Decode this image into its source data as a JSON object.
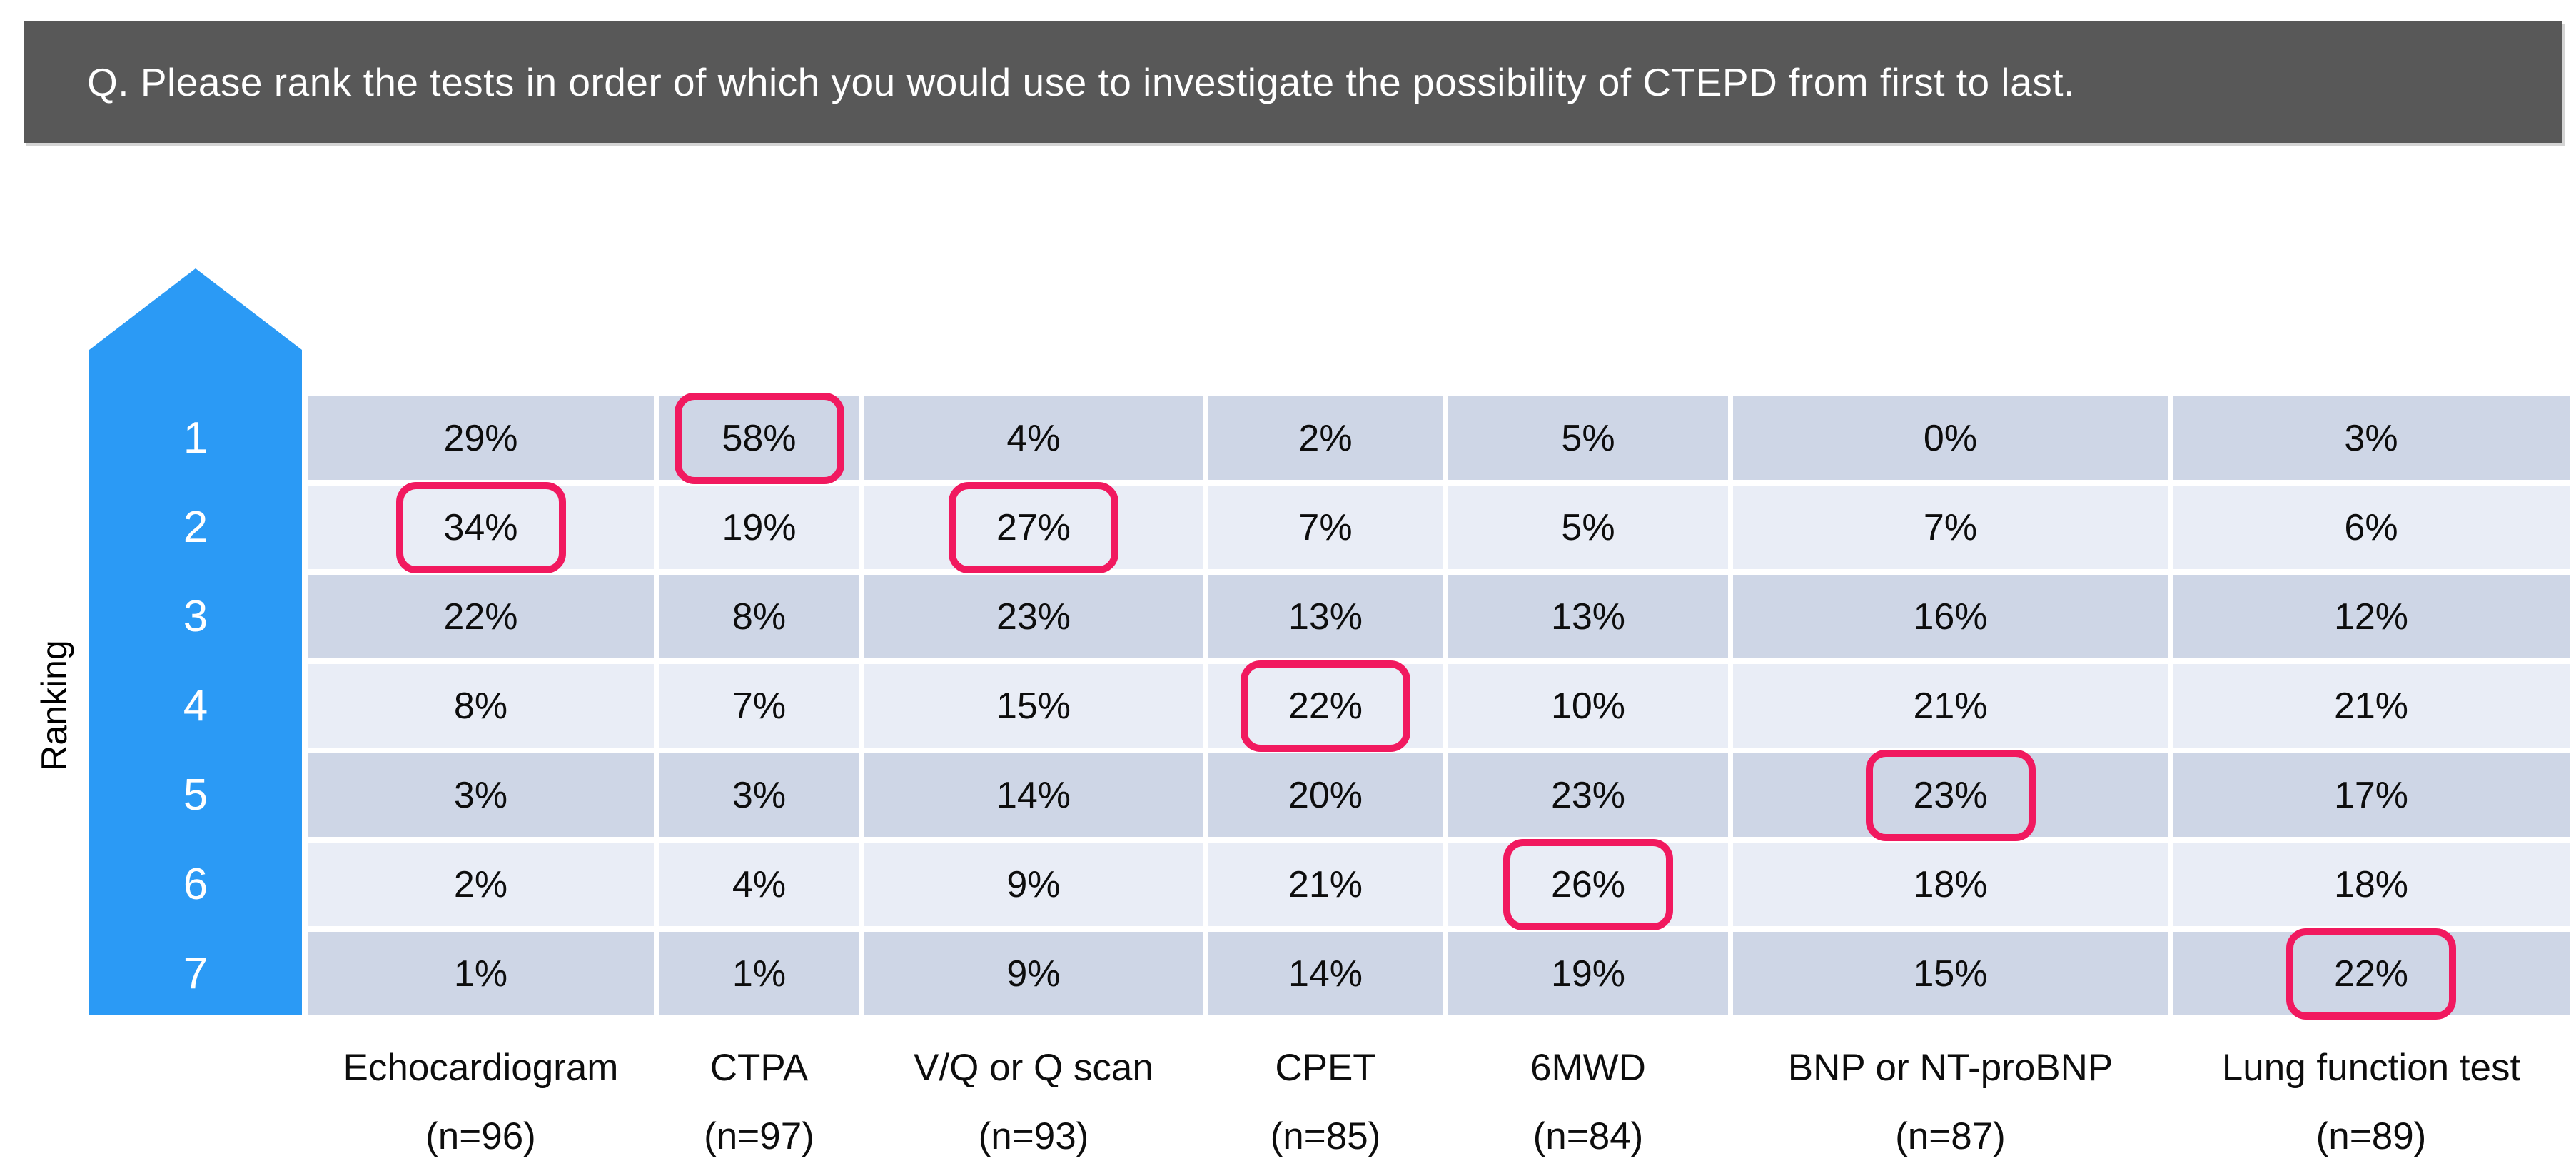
{
  "question": "Q. Please rank the tests in order of which you would use to investigate the possibility of CTEPD from first to last.",
  "axis_label": "Ranking",
  "colors": {
    "header_bg": "#585858",
    "header_text": "#ffffff",
    "arrow_blue": "#2B9AF5",
    "rank_text": "#ffffff",
    "row_dark": "#CED6E6",
    "row_light": "#E9EDF6",
    "cell_text": "#0d0d0d",
    "highlight_pink": "#F1195F",
    "background": "#ffffff"
  },
  "chart_data": {
    "type": "table",
    "title": "Q. Please rank the tests in order of which you would use to investigate the possibility of CTEPD from first to last.",
    "row_axis": {
      "label": "Ranking",
      "ranks": [
        1,
        2,
        3,
        4,
        5,
        6,
        7
      ]
    },
    "value_unit": "%",
    "columns": [
      {
        "test": "Echocardiogram",
        "n": 96,
        "values_pct": [
          29,
          34,
          22,
          8,
          3,
          2,
          1
        ],
        "highlighted_rank": 2
      },
      {
        "test": "CTPA",
        "n": 97,
        "values_pct": [
          58,
          19,
          8,
          7,
          3,
          4,
          1
        ],
        "highlighted_rank": 1
      },
      {
        "test": "V/Q or Q scan",
        "n": 93,
        "values_pct": [
          4,
          27,
          23,
          15,
          14,
          9,
          9
        ],
        "highlighted_rank": 2
      },
      {
        "test": "CPET",
        "n": 85,
        "values_pct": [
          2,
          7,
          13,
          22,
          20,
          21,
          14
        ],
        "highlighted_rank": 4
      },
      {
        "test": "6MWD",
        "n": 84,
        "values_pct": [
          5,
          5,
          13,
          10,
          23,
          26,
          19
        ],
        "highlighted_rank": 6
      },
      {
        "test": "BNP or NT-proBNP",
        "n": 87,
        "values_pct": [
          0,
          7,
          16,
          21,
          23,
          18,
          15
        ],
        "highlighted_rank": 5
      },
      {
        "test": "Lung function test",
        "n": 89,
        "values_pct": [
          3,
          6,
          12,
          21,
          17,
          18,
          22
        ],
        "highlighted_rank": 7
      }
    ]
  }
}
